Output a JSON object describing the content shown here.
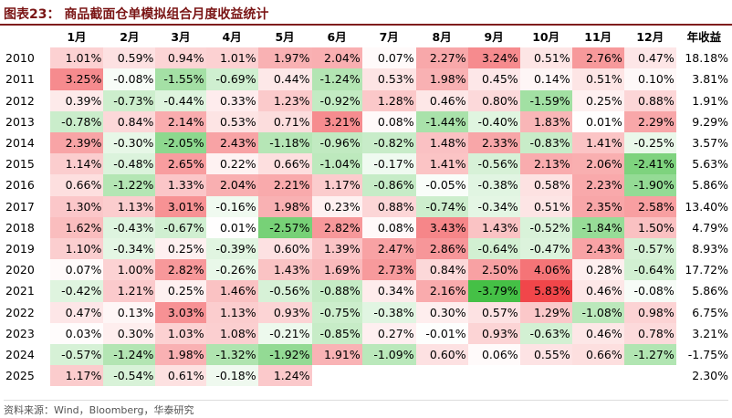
{
  "title": "图表23：  商品截面仓单模拟组合月度收益统计",
  "header": {
    "corner": "",
    "months": [
      "1月",
      "2月",
      "3月",
      "4月",
      "5月",
      "6月",
      "7月",
      "8月",
      "9月",
      "10月",
      "11月",
      "12月"
    ],
    "annual": "年收益"
  },
  "rows": [
    {
      "year": "2010",
      "values": [
        1.01,
        0.59,
        0.94,
        1.01,
        1.97,
        2.04,
        0.07,
        2.27,
        3.24,
        0.51,
        2.76,
        0.47
      ],
      "annual": 18.18
    },
    {
      "year": "2011",
      "values": [
        3.25,
        -0.08,
        -1.55,
        -0.69,
        0.44,
        -1.24,
        0.53,
        1.98,
        0.45,
        0.14,
        0.51,
        0.1
      ],
      "annual": 3.81
    },
    {
      "year": "2012",
      "values": [
        0.39,
        -0.73,
        -0.44,
        0.33,
        1.23,
        -0.92,
        1.28,
        0.46,
        0.8,
        -1.59,
        0.25,
        0.88
      ],
      "annual": 1.91
    },
    {
      "year": "2013",
      "values": [
        -0.78,
        0.84,
        2.14,
        0.53,
        0.71,
        3.21,
        0.08,
        -1.44,
        -0.4,
        1.83,
        0.01,
        2.29
      ],
      "annual": 9.29
    },
    {
      "year": "2014",
      "values": [
        2.39,
        -0.3,
        -2.05,
        2.43,
        -1.18,
        -0.96,
        -0.82,
        1.48,
        2.33,
        -0.83,
        1.41,
        -0.25
      ],
      "annual": 3.57
    },
    {
      "year": "2015",
      "values": [
        1.14,
        -0.48,
        2.65,
        0.22,
        0.66,
        -1.04,
        -0.17,
        1.41,
        -0.56,
        2.13,
        2.06,
        -2.41
      ],
      "annual": 5.63
    },
    {
      "year": "2016",
      "values": [
        0.66,
        -1.22,
        1.33,
        2.04,
        2.21,
        1.17,
        -0.86,
        -0.05,
        -0.38,
        0.58,
        2.23,
        -1.9
      ],
      "annual": 5.86
    },
    {
      "year": "2017",
      "values": [
        1.3,
        1.13,
        3.01,
        -0.16,
        1.98,
        0.23,
        0.88,
        -0.74,
        -0.34,
        0.51,
        2.35,
        2.58
      ],
      "annual": 13.4
    },
    {
      "year": "2018",
      "values": [
        1.62,
        -0.43,
        -0.67,
        0.01,
        -2.57,
        2.82,
        0.08,
        3.43,
        1.43,
        -0.52,
        -1.84,
        1.5
      ],
      "annual": 4.79
    },
    {
      "year": "2019",
      "values": [
        1.1,
        -0.34,
        0.25,
        -0.39,
        0.6,
        1.39,
        2.47,
        2.86,
        -0.64,
        -0.47,
        2.43,
        -0.57
      ],
      "annual": 8.93
    },
    {
      "year": "2020",
      "values": [
        0.07,
        1.0,
        2.82,
        -0.26,
        1.43,
        1.69,
        2.73,
        0.84,
        2.5,
        4.06,
        0.28,
        -0.64
      ],
      "annual": 17.72
    },
    {
      "year": "2021",
      "values": [
        -0.42,
        1.21,
        0.25,
        1.46,
        -0.56,
        -0.88,
        0.34,
        2.16,
        -3.79,
        5.83,
        0.46,
        -0.08
      ],
      "annual": 5.86
    },
    {
      "year": "2022",
      "values": [
        0.47,
        0.13,
        3.03,
        1.13,
        0.93,
        -0.75,
        -0.38,
        0.3,
        0.57,
        1.29,
        -1.08,
        0.98
      ],
      "annual": 6.75
    },
    {
      "year": "2023",
      "values": [
        0.03,
        0.3,
        1.03,
        1.08,
        -0.21,
        -0.85,
        0.27,
        -0.01,
        0.93,
        -0.63,
        0.46,
        0.78
      ],
      "annual": 3.21
    },
    {
      "year": "2024",
      "values": [
        -0.57,
        -1.24,
        1.98,
        -1.32,
        -1.92,
        1.91,
        -1.09,
        0.6,
        0.06,
        0.55,
        0.66,
        -1.27
      ],
      "annual": -1.75
    },
    {
      "year": "2025",
      "values": [
        1.17,
        -0.54,
        0.61,
        -0.18,
        1.24,
        null,
        null,
        null,
        null,
        null,
        null,
        null
      ],
      "annual": 2.3
    }
  ],
  "colors": {
    "positive_max": "#f1464a",
    "negative_max": "#45c046",
    "neutral": "#ffffff",
    "title_color": "#7a1515"
  },
  "source": "资料来源：Wind，Bloomberg，华泰研究"
}
